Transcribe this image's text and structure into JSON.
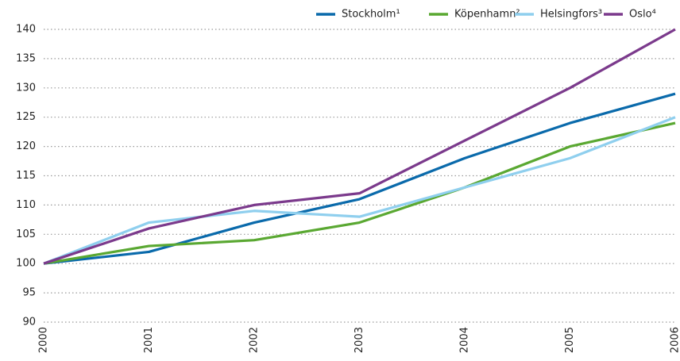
{
  "chart_data": {
    "type": "line",
    "x": [
      2000,
      2001,
      2002,
      2003,
      2004,
      2005,
      2006
    ],
    "xlim": [
      2000,
      2006
    ],
    "xticks": [
      2000,
      2001,
      2002,
      2003,
      2004,
      2005,
      2006
    ],
    "ylim": [
      90,
      140
    ],
    "yticks": [
      90,
      95,
      100,
      105,
      110,
      115,
      120,
      125,
      130,
      135,
      140
    ],
    "grid": true,
    "legend": "top-right",
    "series": [
      {
        "name": "Stockholm¹",
        "color": "#0a6aab",
        "values": [
          100,
          102,
          107,
          111,
          118,
          124,
          129
        ]
      },
      {
        "name": "Köpenhamn²",
        "color": "#5aa832",
        "values": [
          100,
          103,
          104,
          107,
          113,
          120,
          124
        ]
      },
      {
        "name": "Helsingfors³",
        "color": "#8fcfee",
        "values": [
          100,
          107,
          109,
          108,
          113,
          118,
          125
        ]
      },
      {
        "name": "Oslo⁴",
        "color": "#7b3a8c",
        "values": [
          100,
          106,
          110,
          112,
          121,
          130,
          140
        ]
      }
    ]
  }
}
